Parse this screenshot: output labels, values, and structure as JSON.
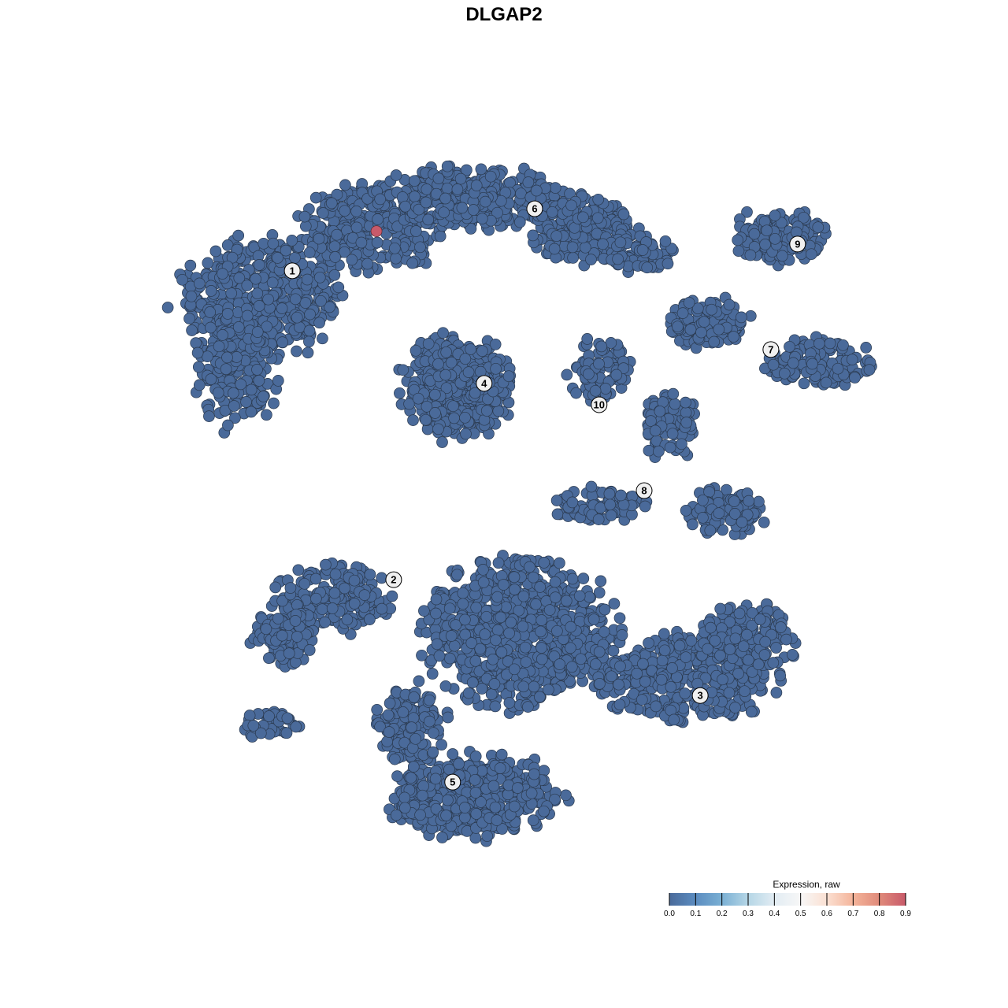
{
  "chart_data": {
    "type": "scatter",
    "title": "DLGAP2",
    "xlabel": "",
    "ylabel": "",
    "grid": false,
    "axes_visible": false,
    "point_color_default": "#4a6488",
    "clusters": [
      {
        "label": "1",
        "x": -6.32,
        "y": 6.49
      },
      {
        "label": "2",
        "x": -3.55,
        "y": -2.18
      },
      {
        "label": "3",
        "x": 4.82,
        "y": -5.43
      },
      {
        "label": "4",
        "x": -1.08,
        "y": 3.33
      },
      {
        "label": "5",
        "x": -1.94,
        "y": -7.86
      },
      {
        "label": "6",
        "x": 0.3,
        "y": 8.23
      },
      {
        "label": "7",
        "x": 6.75,
        "y": 4.28
      },
      {
        "label": "8",
        "x": 3.29,
        "y": 0.32
      },
      {
        "label": "9",
        "x": 7.48,
        "y": 7.24
      },
      {
        "label": "10",
        "x": 2.06,
        "y": 2.73
      }
    ],
    "background_expression": 0.0,
    "expressing_points": [
      {
        "x": -4.02,
        "y": 7.6,
        "value": 0.9,
        "cluster": "1"
      }
    ],
    "legend": {
      "title": "Expression, raw",
      "placement": "bottom-right",
      "range": [
        0.0,
        0.9
      ],
      "ticks": [
        "0.0",
        "0.1",
        "0.2",
        "0.3",
        "0.4",
        "0.5",
        "0.6",
        "0.7",
        "0.8",
        "0.9"
      ],
      "colors": [
        "#4a6a9a",
        "#5b8cc0",
        "#7ab0d4",
        "#b5d6e6",
        "#e2ecf3",
        "#f7f7f7",
        "#fbe0d2",
        "#f4b49a",
        "#e08a7a",
        "#c85a6a"
      ]
    }
  }
}
